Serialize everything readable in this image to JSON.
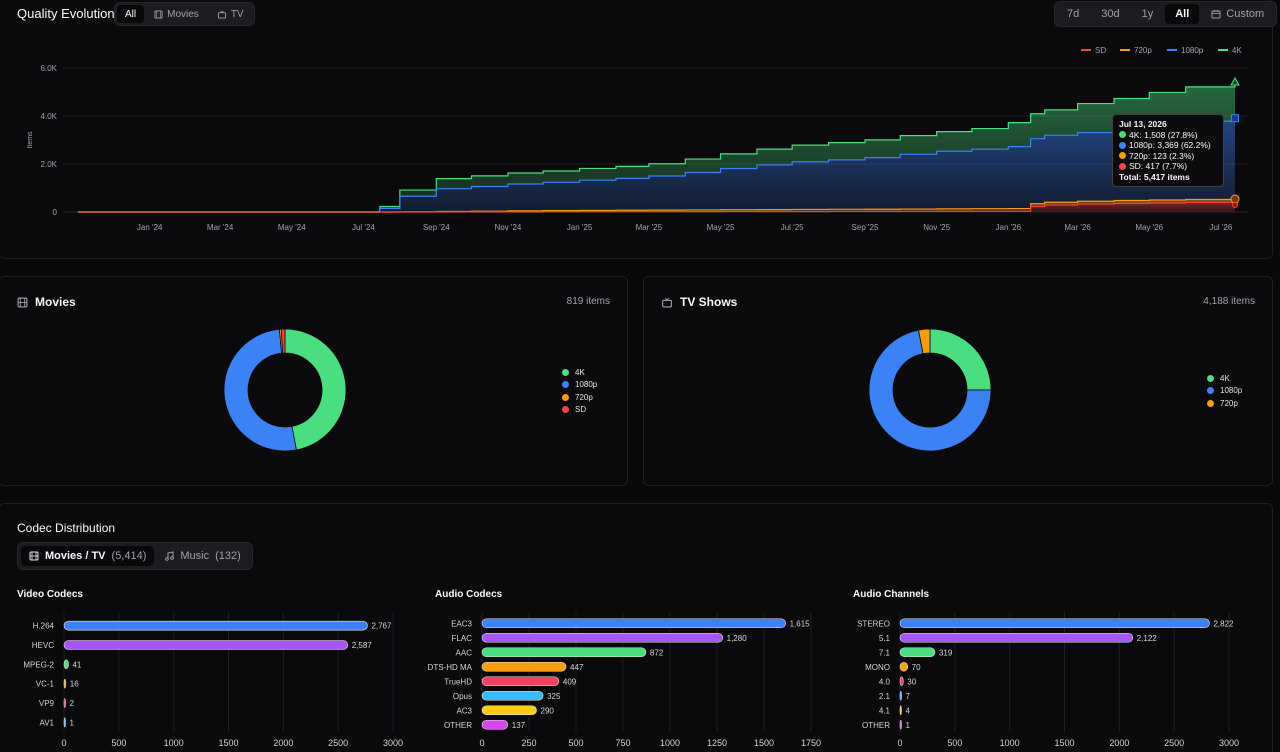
{
  "header": {
    "title": "Quality Evolution",
    "media_filter": [
      {
        "label": "All",
        "icon": "",
        "active": true
      },
      {
        "label": "Movies",
        "icon": "film-icon",
        "active": false
      },
      {
        "label": "TV",
        "icon": "tv-icon",
        "active": false
      }
    ],
    "ranges": [
      {
        "label": "7d",
        "active": false
      },
      {
        "label": "30d",
        "active": false
      },
      {
        "label": "1y",
        "active": false
      },
      {
        "label": "All",
        "active": true
      },
      {
        "label": "Custom",
        "icon": "calendar-icon",
        "active": false
      }
    ]
  },
  "colors": {
    "sd": "#ef4444",
    "p720": "#f59e0b",
    "p1080": "#3b82f6",
    "k4": "#4ade80",
    "purple": "#a855f7",
    "pink": "#f43f5e",
    "sky": "#38bdf8",
    "yellow": "#facc15",
    "fuchsia": "#d946ef",
    "green": "#22c55e"
  },
  "evolution": {
    "chart_data": {
      "type": "area",
      "stacked": true,
      "xlabel": "",
      "ylabel": "Items",
      "ylim": [
        0,
        6000
      ],
      "y_ticks": [
        0,
        2000,
        4000,
        6000
      ],
      "y_tick_labels": [
        "0",
        "2.0K",
        "4.0K",
        "6.0K"
      ],
      "x_tick_labels": [
        "Jan '24",
        "Mar '24",
        "May '24",
        "Jul '24",
        "Sep '24",
        "Nov '24",
        "Jan '25",
        "Mar '25",
        "May '25",
        "Jul '25",
        "Sep '25",
        "Nov '25",
        "Jan '26",
        "Mar '26",
        "May '26",
        "Jul '26"
      ],
      "x_tick_dates": [
        "2024-01-01",
        "2024-03-01",
        "2024-05-01",
        "2024-07-01",
        "2024-09-01",
        "2024-11-01",
        "2025-01-01",
        "2025-03-01",
        "2025-05-01",
        "2025-07-01",
        "2025-09-01",
        "2025-11-01",
        "2026-01-01",
        "2026-03-01",
        "2026-05-01",
        "2026-07-01"
      ],
      "x_range": [
        "2023-11-01",
        "2026-07-13"
      ],
      "legend": [
        "SD",
        "720p",
        "1080p",
        "4K"
      ],
      "legend_position": "top-right",
      "x": [
        "2023-11-01",
        "2024-07-01",
        "2024-07-15",
        "2024-08-01",
        "2024-09-01",
        "2024-10-01",
        "2024-11-01",
        "2024-12-01",
        "2025-01-01",
        "2025-02-01",
        "2025-03-01",
        "2025-04-01",
        "2025-05-01",
        "2025-06-01",
        "2025-07-01",
        "2025-08-01",
        "2025-09-01",
        "2025-10-01",
        "2025-11-01",
        "2025-12-01",
        "2026-01-01",
        "2026-01-20",
        "2026-02-01",
        "2026-03-01",
        "2026-04-01",
        "2026-05-01",
        "2026-06-01",
        "2026-07-13"
      ],
      "series": [
        {
          "name": "SD",
          "values": [
            0,
            0,
            0,
            0,
            2,
            4,
            6,
            8,
            10,
            12,
            14,
            16,
            18,
            20,
            22,
            24,
            26,
            28,
            30,
            32,
            34,
            230,
            290,
            330,
            360,
            380,
            400,
            417
          ]
        },
        {
          "name": "720p",
          "values": [
            0,
            0,
            0,
            5,
            20,
            30,
            40,
            50,
            55,
            60,
            65,
            70,
            75,
            80,
            85,
            88,
            90,
            95,
            100,
            105,
            110,
            115,
            116,
            118,
            120,
            121,
            122,
            123
          ]
        },
        {
          "name": "1080p",
          "values": [
            0,
            0,
            150,
            650,
            950,
            1030,
            1120,
            1180,
            1260,
            1330,
            1420,
            1560,
            1720,
            1860,
            1980,
            2060,
            2150,
            2280,
            2400,
            2480,
            2580,
            2710,
            2790,
            2860,
            2960,
            3120,
            3260,
            3369
          ]
        },
        {
          "name": "4K",
          "values": [
            0,
            0,
            80,
            260,
            420,
            440,
            460,
            470,
            490,
            500,
            510,
            560,
            610,
            660,
            700,
            720,
            740,
            780,
            820,
            860,
            1000,
            1040,
            1060,
            1210,
            1290,
            1360,
            1430,
            1508
          ]
        }
      ]
    },
    "tooltip": {
      "date": "Jul 13, 2026",
      "rows": [
        {
          "label": "4K: 1,508 (27.8%)",
          "color": "#4ade80"
        },
        {
          "label": "1080p: 3,369 (62.2%)",
          "color": "#3b82f6"
        },
        {
          "label": "720p: 123 (2.3%)",
          "color": "#f59e0b"
        },
        {
          "label": "SD: 417 (7.7%)",
          "color": "#ef4444"
        }
      ],
      "total": "Total: 5,417 items"
    }
  },
  "movies": {
    "title": "Movies",
    "count": "819 items",
    "chart_data": {
      "type": "pie",
      "donut": true,
      "labels": [
        "4K",
        "1080p",
        "720p",
        "SD"
      ],
      "values": [
        385,
        422,
        4,
        8
      ],
      "colors": [
        "#4ade80",
        "#3b82f6",
        "#f59e0b",
        "#ef4444"
      ]
    }
  },
  "tv": {
    "title": "TV Shows",
    "count": "4,188 items",
    "chart_data": {
      "type": "pie",
      "donut": true,
      "labels": [
        "4K",
        "1080p",
        "720p"
      ],
      "values": [
        1047,
        3015,
        126
      ],
      "colors": [
        "#4ade80",
        "#3b82f6",
        "#f59e0b"
      ]
    }
  },
  "codec": {
    "title": "Codec Distribution",
    "tabs": [
      {
        "label": "Movies / TV",
        "count": "(5,414)",
        "icon": "film-icon",
        "active": true
      },
      {
        "label": "Music",
        "count": "(132)",
        "icon": "music-icon",
        "active": false
      }
    ],
    "charts": [
      {
        "title": "Video Codecs",
        "chart_data": {
          "type": "bar",
          "orientation": "horizontal",
          "categories": [
            "H.264",
            "HEVC",
            "MPEG-2",
            "VC-1",
            "VP9",
            "AV1"
          ],
          "values": [
            2767,
            2587,
            41,
            16,
            2,
            1
          ],
          "value_labels": [
            "2,767",
            "2,587",
            "41",
            "16",
            "2",
            "1"
          ],
          "colors": [
            "#3b82f6",
            "#a855f7",
            "#4ade80",
            "#f59e0b",
            "#f43f5e",
            "#38bdf8"
          ],
          "xlim": [
            0,
            3000
          ],
          "x_ticks": [
            0,
            500,
            1000,
            1500,
            2000,
            2500,
            3000
          ]
        }
      },
      {
        "title": "Audio Codecs",
        "chart_data": {
          "type": "bar",
          "orientation": "horizontal",
          "categories": [
            "EAC3",
            "FLAC",
            "AAC",
            "DTS-HD MA",
            "TrueHD",
            "Opus",
            "AC3",
            "OTHER"
          ],
          "values": [
            1615,
            1280,
            872,
            447,
            409,
            325,
            290,
            137
          ],
          "value_labels": [
            "1,615",
            "1,280",
            "872",
            "447",
            "409",
            "325",
            "290",
            "137"
          ],
          "colors": [
            "#3b82f6",
            "#a855f7",
            "#4ade80",
            "#f59e0b",
            "#f43f5e",
            "#38bdf8",
            "#facc15",
            "#d946ef"
          ],
          "xlim": [
            0,
            1750
          ],
          "x_ticks": [
            0,
            250,
            500,
            750,
            1000,
            1250,
            1500,
            1750
          ]
        }
      },
      {
        "title": "Audio Channels",
        "chart_data": {
          "type": "bar",
          "orientation": "horizontal",
          "categories": [
            "STEREO",
            "5.1",
            "7.1",
            "MONO",
            "4.0",
            "2.1",
            "4.1",
            "OTHER"
          ],
          "values": [
            2822,
            2122,
            319,
            70,
            30,
            7,
            4,
            1
          ],
          "value_labels": [
            "2,822",
            "2,122",
            "319",
            "70",
            "30",
            "7",
            "4",
            "1"
          ],
          "colors": [
            "#3b82f6",
            "#a855f7",
            "#4ade80",
            "#f59e0b",
            "#f43f5e",
            "#38bdf8",
            "#facc15",
            "#d946ef"
          ],
          "xlim": [
            0,
            3000
          ],
          "x_ticks": [
            0,
            500,
            1000,
            1500,
            2000,
            2500,
            3000
          ]
        }
      }
    ]
  }
}
